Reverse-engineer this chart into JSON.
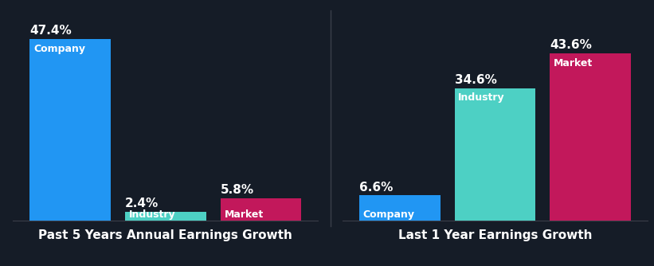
{
  "background_color": "#151c27",
  "group1": {
    "title": "Past 5 Years Annual Earnings Growth",
    "bars": [
      {
        "label": "Company",
        "value": 47.4,
        "color": "#2196f3"
      },
      {
        "label": "Industry",
        "value": 2.4,
        "color": "#4dd0c4"
      },
      {
        "label": "Market",
        "value": 5.8,
        "color": "#c2185b"
      }
    ]
  },
  "group2": {
    "title": "Last 1 Year Earnings Growth",
    "bars": [
      {
        "label": "Company",
        "value": 6.6,
        "color": "#2196f3"
      },
      {
        "label": "Industry",
        "value": 34.6,
        "color": "#4dd0c4"
      },
      {
        "label": "Market",
        "value": 43.6,
        "color": "#c2185b"
      }
    ]
  },
  "ylim": [
    0,
    52
  ],
  "text_color": "#ffffff",
  "title_fontsize": 11,
  "value_fontsize": 11,
  "bar_label_fontsize": 9,
  "bar_width": 0.85,
  "tall_threshold": 8.0
}
